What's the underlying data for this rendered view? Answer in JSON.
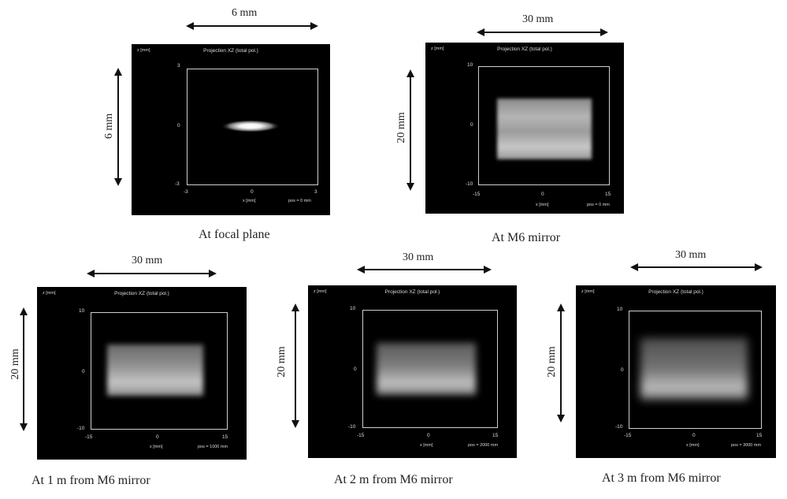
{
  "panels": [
    {
      "title": "Projection XZ  (total pol.)",
      "z_axis_label": "z [mm]",
      "x_axis_label": "x [mm]",
      "pos_label": "pos = 0 mm",
      "x_ticks": [
        "-3",
        "0",
        "3"
      ],
      "z_ticks": [
        "3",
        "0",
        "-3"
      ],
      "width_label": "6 mm",
      "height_label": "6 mm",
      "caption": "At focal plane",
      "beam": "spot"
    },
    {
      "title": "Projection XZ  (total pol.)",
      "z_axis_label": "z [mm]",
      "x_axis_label": "x [mm]",
      "pos_label": "pos = 0 mm",
      "x_ticks": [
        "-15",
        "0",
        "15"
      ],
      "z_ticks": [
        "10",
        "0",
        "-10"
      ],
      "width_label": "30 mm",
      "height_label": "20 mm",
      "caption": "At M6 mirror",
      "beam": "rect-sharp"
    },
    {
      "title": "Projection XZ  (total pol.)",
      "z_axis_label": "z [mm]",
      "x_axis_label": "x [mm]",
      "pos_label": "pos = 1000 mm",
      "x_ticks": [
        "-15",
        "0",
        "15"
      ],
      "z_ticks": [
        "10",
        "0",
        "-10"
      ],
      "width_label": "30 mm",
      "height_label": "20 mm",
      "caption": "At 1 m from M6 mirror",
      "beam": "rect-soft1"
    },
    {
      "title": "Projection XZ  (total pol.)",
      "z_axis_label": "z [mm]",
      "x_axis_label": "x [mm]",
      "pos_label": "pos = 2000 mm",
      "x_ticks": [
        "-15",
        "0",
        "15"
      ],
      "z_ticks": [
        "10",
        "0",
        "-10"
      ],
      "width_label": "30 mm",
      "height_label": "20 mm",
      "caption": "At 2 m from M6 mirror",
      "beam": "rect-soft2"
    },
    {
      "title": "Projection XZ  (total pol.)",
      "z_axis_label": "z [mm]",
      "x_axis_label": "x [mm]",
      "pos_label": "pos = 3000 mm",
      "x_ticks": [
        "-15",
        "0",
        "15"
      ],
      "z_ticks": [
        "10",
        "0",
        "-10"
      ],
      "width_label": "30 mm",
      "height_label": "20 mm",
      "caption": "At 3 m from M6 mirror",
      "beam": "rect-soft3"
    }
  ]
}
